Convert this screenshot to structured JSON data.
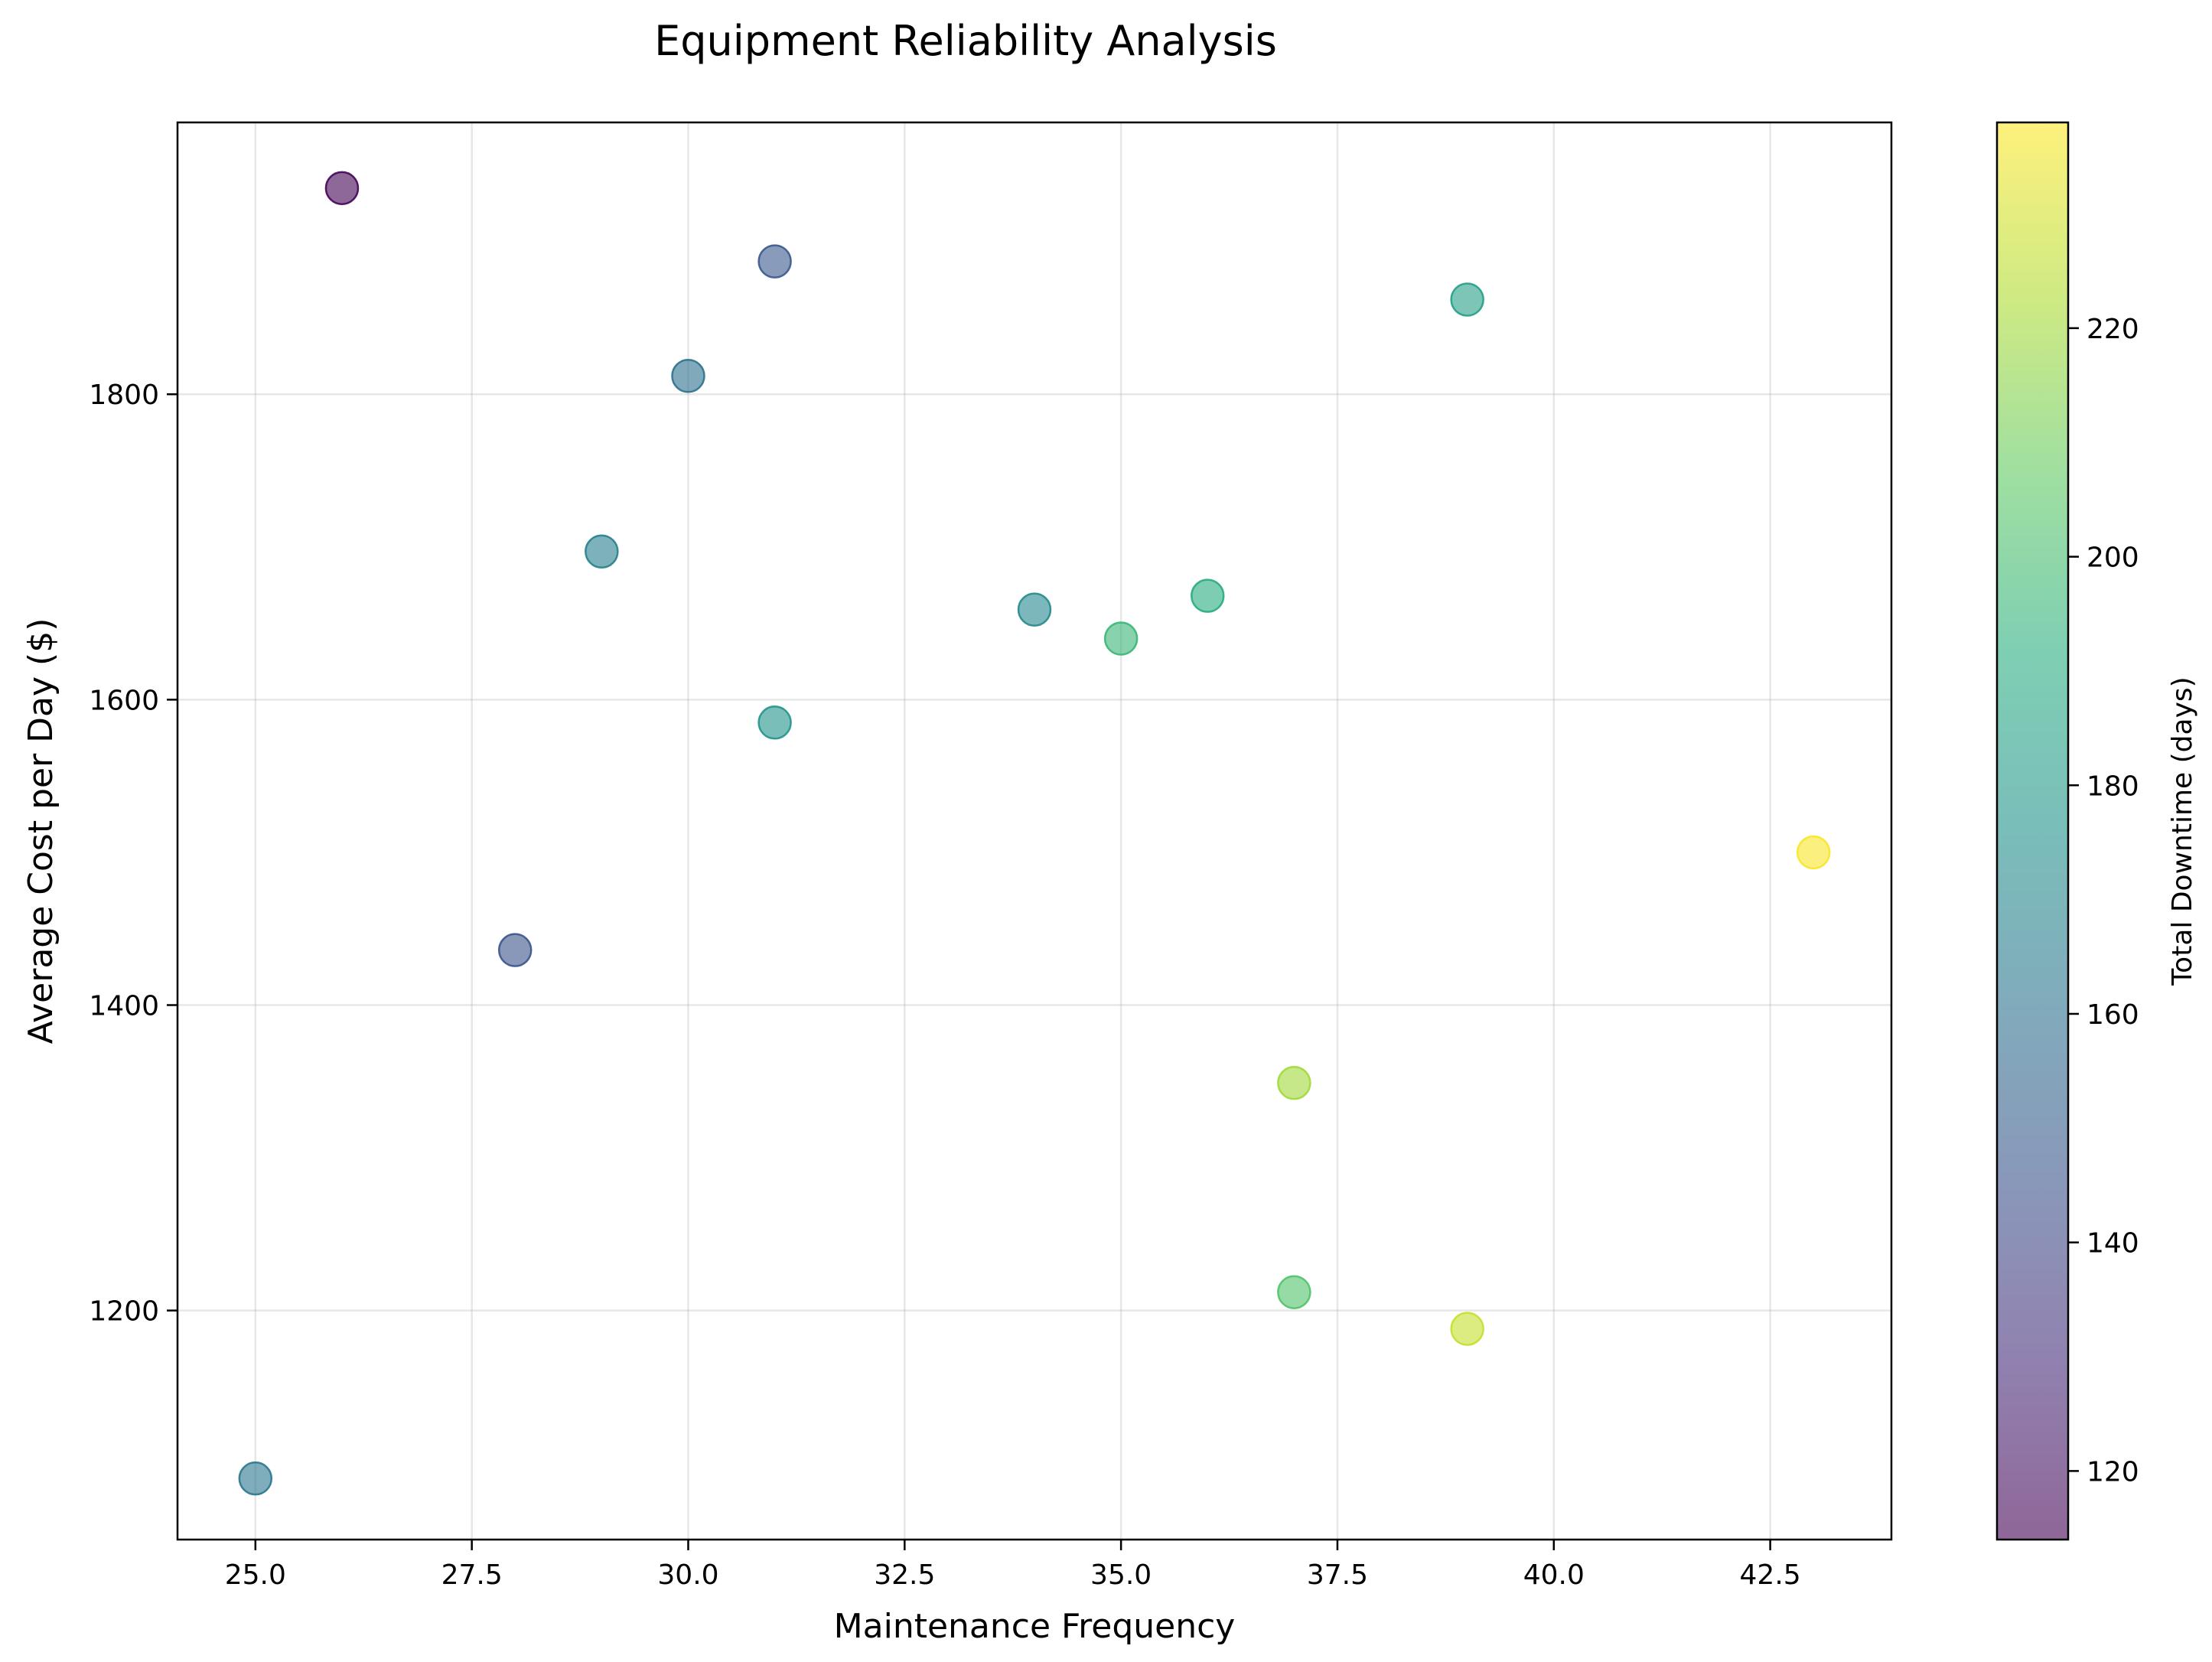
{
  "chart_data": {
    "type": "scatter",
    "title": "Equipment Reliability Analysis",
    "xlabel": "Maintenance Frequency",
    "ylabel": "Average Cost per Day ($)",
    "xlim": [
      24.1,
      43.9
    ],
    "ylim": [
      1050,
      1978
    ],
    "xticks": [
      "25.0",
      "27.5",
      "30.0",
      "32.5",
      "35.0",
      "37.5",
      "40.0",
      "42.5"
    ],
    "yticks": [
      "1200",
      "1400",
      "1600",
      "1800"
    ],
    "grid": true,
    "colorbar": {
      "label": "Total Downtime (days)",
      "colormap": "viridis",
      "alpha": 0.6,
      "range": [
        114,
        238
      ],
      "ticks": [
        "120",
        "140",
        "160",
        "180",
        "200",
        "220"
      ]
    },
    "points": [
      {
        "x": 26,
        "y": 1935,
        "downtime": 115
      },
      {
        "x": 31,
        "y": 1887,
        "downtime": 148
      },
      {
        "x": 30,
        "y": 1812,
        "downtime": 160
      },
      {
        "x": 29,
        "y": 1697,
        "downtime": 167
      },
      {
        "x": 31,
        "y": 1585,
        "downtime": 177
      },
      {
        "x": 28,
        "y": 1436,
        "downtime": 146
      },
      {
        "x": 25,
        "y": 1090,
        "downtime": 163
      },
      {
        "x": 34,
        "y": 1659,
        "downtime": 172
      },
      {
        "x": 35,
        "y": 1640,
        "downtime": 196
      },
      {
        "x": 36,
        "y": 1668,
        "downtime": 190
      },
      {
        "x": 39,
        "y": 1862,
        "downtime": 183
      },
      {
        "x": 43,
        "y": 1500,
        "downtime": 237
      },
      {
        "x": 37,
        "y": 1349,
        "downtime": 220
      },
      {
        "x": 37,
        "y": 1212,
        "downtime": 203
      },
      {
        "x": 39,
        "y": 1188,
        "downtime": 227
      }
    ]
  }
}
